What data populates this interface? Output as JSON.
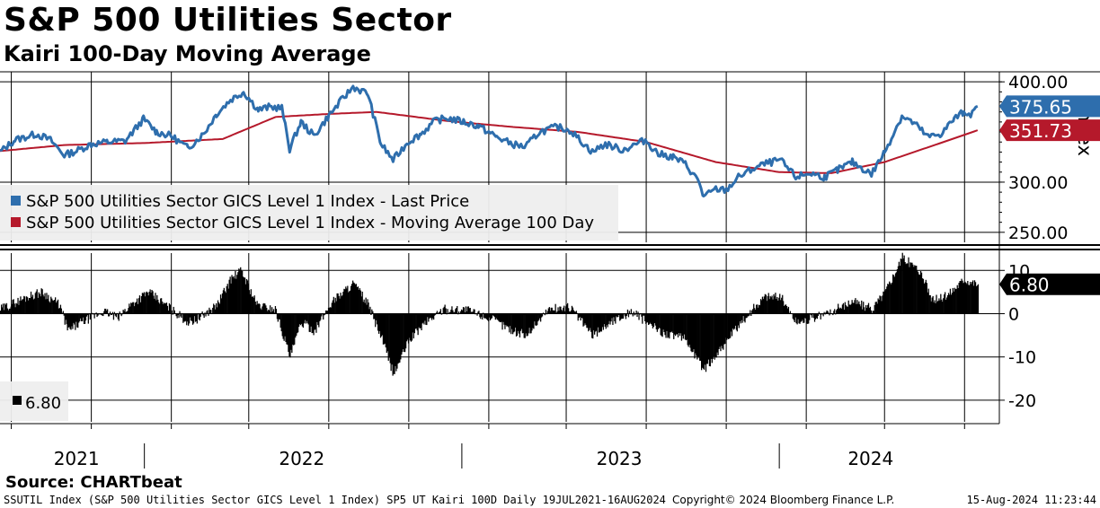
{
  "header": {
    "title": "S&P 500 Utilities Sector",
    "subtitle": "Kairi 100-Day Moving Average"
  },
  "footer": {
    "source": "Source: CHARTbeat",
    "left": "SSUTIL Index (S&P 500 Utilities Sector GICS Level 1 Index) SP5 UT Kairi 100D  Daily 19JUL2021-16AUG2024",
    "center": "Copyright© 2024 Bloomberg Finance L.P.",
    "right": "15-Aug-2024 11:23:44"
  },
  "colors": {
    "price": "#2e6ead",
    "ma": "#b5192b",
    "kairi": "#000000",
    "grid": "#000000"
  },
  "chart_data": [
    {
      "type": "line",
      "panel": "upper",
      "ylabel": "Index",
      "ylim": [
        240,
        410
      ],
      "y_ticks": [
        "400.00",
        "300.00",
        "250.00"
      ],
      "y_tick_values": [
        400,
        300,
        250
      ],
      "legend": {
        "placement": "lower-left",
        "entries": [
          "S&P 500 Utilities Sector GICS Level 1 Index - Last Price",
          "S&P 500 Utilities Sector GICS Level 1 Index - Moving Average 100 Day"
        ]
      },
      "last_labels": {
        "price": "375.65",
        "ma": "351.73"
      },
      "series": [
        {
          "name": "S&P 500 Utilities Sector GICS Level 1 Index - Last Price",
          "points": [
            [
              "2021-07-19",
              330
            ],
            [
              "2021-08-05",
              342
            ],
            [
              "2021-08-30",
              348
            ],
            [
              "2021-09-15",
              342
            ],
            [
              "2021-10-01",
              327
            ],
            [
              "2021-10-15",
              331
            ],
            [
              "2021-11-01",
              338
            ],
            [
              "2021-11-20",
              340
            ],
            [
              "2021-12-10",
              341
            ],
            [
              "2021-12-31",
              363
            ],
            [
              "2022-01-15",
              350
            ],
            [
              "2022-02-01",
              346
            ],
            [
              "2022-02-20",
              334
            ],
            [
              "2022-03-10",
              348
            ],
            [
              "2022-03-25",
              368
            ],
            [
              "2022-04-10",
              382
            ],
            [
              "2022-04-25",
              390
            ],
            [
              "2022-05-12",
              372
            ],
            [
              "2022-05-25",
              375
            ],
            [
              "2022-06-08",
              374
            ],
            [
              "2022-06-17",
              333
            ],
            [
              "2022-06-30",
              360
            ],
            [
              "2022-07-15",
              346
            ],
            [
              "2022-08-01",
              366
            ],
            [
              "2022-08-15",
              381
            ],
            [
              "2022-08-29",
              395
            ],
            [
              "2022-09-15",
              388
            ],
            [
              "2022-09-30",
              338
            ],
            [
              "2022-10-14",
              322
            ],
            [
              "2022-10-31",
              340
            ],
            [
              "2022-11-15",
              348
            ],
            [
              "2022-12-01",
              361
            ],
            [
              "2022-12-15",
              364
            ],
            [
              "2023-01-03",
              360
            ],
            [
              "2023-01-20",
              356
            ],
            [
              "2023-02-10",
              345
            ],
            [
              "2023-02-28",
              338
            ],
            [
              "2023-03-15",
              335
            ],
            [
              "2023-03-31",
              350
            ],
            [
              "2023-04-20",
              355
            ],
            [
              "2023-05-05",
              352
            ],
            [
              "2023-05-31",
              330
            ],
            [
              "2023-06-15",
              338
            ],
            [
              "2023-07-05",
              332
            ],
            [
              "2023-07-31",
              342
            ],
            [
              "2023-08-15",
              328
            ],
            [
              "2023-09-01",
              325
            ],
            [
              "2023-09-15",
              318
            ],
            [
              "2023-10-01",
              300
            ],
            [
              "2023-10-06",
              285
            ],
            [
              "2023-10-20",
              293
            ],
            [
              "2023-11-01",
              292
            ],
            [
              "2023-11-15",
              305
            ],
            [
              "2023-12-01",
              313
            ],
            [
              "2023-12-15",
              318
            ],
            [
              "2024-01-02",
              322
            ],
            [
              "2024-01-20",
              305
            ],
            [
              "2024-02-05",
              309
            ],
            [
              "2024-02-22",
              305
            ],
            [
              "2024-03-08",
              312
            ],
            [
              "2024-03-25",
              320
            ],
            [
              "2024-04-16",
              308
            ],
            [
              "2024-05-01",
              330
            ],
            [
              "2024-05-21",
              366
            ],
            [
              "2024-06-05",
              358
            ],
            [
              "2024-06-20",
              345
            ],
            [
              "2024-07-05",
              348
            ],
            [
              "2024-07-20",
              363
            ],
            [
              "2024-07-31",
              370
            ],
            [
              "2024-08-10",
              368
            ],
            [
              "2024-08-16",
              375.65
            ]
          ]
        },
        {
          "name": "S&P 500 Utilities Sector GICS Level 1 Index - Moving Average 100 Day",
          "points": [
            [
              "2021-07-19",
              331
            ],
            [
              "2021-10-01",
              337
            ],
            [
              "2022-01-01",
              339
            ],
            [
              "2022-04-01",
              343
            ],
            [
              "2022-06-01",
              365
            ],
            [
              "2022-08-01",
              368
            ],
            [
              "2022-09-25",
              370
            ],
            [
              "2022-12-15",
              361
            ],
            [
              "2023-03-01",
              355
            ],
            [
              "2023-05-15",
              350
            ],
            [
              "2023-08-01",
              340
            ],
            [
              "2023-10-20",
              320
            ],
            [
              "2024-01-01",
              310
            ],
            [
              "2024-03-01",
              309
            ],
            [
              "2024-05-01",
              320
            ],
            [
              "2024-07-01",
              338
            ],
            [
              "2024-08-16",
              351.73
            ]
          ]
        }
      ]
    },
    {
      "type": "bar",
      "panel": "lower",
      "ylim": [
        -25,
        14
      ],
      "y_ticks": [
        "10",
        "0",
        "-10",
        "-20"
      ],
      "y_tick_values": [
        10,
        0,
        -10,
        -20
      ],
      "legend": {
        "placement": "lower-left",
        "entries": [
          "6.80"
        ]
      },
      "last_label": "6.80",
      "series": [
        {
          "name": "6.80",
          "points": [
            [
              "2021-07-19",
              1
            ],
            [
              "2021-08-20",
              4
            ],
            [
              "2021-09-05",
              5
            ],
            [
              "2021-09-25",
              2
            ],
            [
              "2021-10-05",
              -4
            ],
            [
              "2021-10-20",
              -2
            ],
            [
              "2021-11-15",
              0.5
            ],
            [
              "2021-12-01",
              -1
            ],
            [
              "2021-12-15",
              2
            ],
            [
              "2022-01-05",
              5
            ],
            [
              "2022-01-25",
              2
            ],
            [
              "2022-02-20",
              -2
            ],
            [
              "2022-03-05",
              -1
            ],
            [
              "2022-03-25",
              2
            ],
            [
              "2022-04-10",
              8
            ],
            [
              "2022-04-22",
              10
            ],
            [
              "2022-05-10",
              2
            ],
            [
              "2022-05-31",
              1
            ],
            [
              "2022-06-17",
              -10
            ],
            [
              "2022-06-30",
              -2
            ],
            [
              "2022-07-15",
              -4
            ],
            [
              "2022-08-05",
              3
            ],
            [
              "2022-08-29",
              7
            ],
            [
              "2022-09-15",
              2
            ],
            [
              "2022-10-01",
              -6
            ],
            [
              "2022-10-14",
              -14
            ],
            [
              "2022-11-01",
              -6
            ],
            [
              "2022-11-20",
              -2
            ],
            [
              "2022-12-10",
              1
            ],
            [
              "2023-01-05",
              1
            ],
            [
              "2023-02-01",
              -1
            ],
            [
              "2023-03-01",
              -4
            ],
            [
              "2023-03-15",
              -5
            ],
            [
              "2023-04-10",
              1
            ],
            [
              "2023-05-05",
              1.5
            ],
            [
              "2023-05-31",
              -5
            ],
            [
              "2023-06-20",
              -2
            ],
            [
              "2023-07-15",
              0.5
            ],
            [
              "2023-08-15",
              -4
            ],
            [
              "2023-09-15",
              -6
            ],
            [
              "2023-10-06",
              -13
            ],
            [
              "2023-10-25",
              -8
            ],
            [
              "2023-11-10",
              -4
            ],
            [
              "2023-12-01",
              1
            ],
            [
              "2023-12-15",
              4
            ],
            [
              "2024-01-02",
              4
            ],
            [
              "2024-01-20",
              -2
            ],
            [
              "2024-02-10",
              -1
            ],
            [
              "2024-03-01",
              0.5
            ],
            [
              "2024-03-25",
              3
            ],
            [
              "2024-04-16",
              1
            ],
            [
              "2024-05-01",
              5
            ],
            [
              "2024-05-21",
              13
            ],
            [
              "2024-06-10",
              10
            ],
            [
              "2024-06-25",
              3
            ],
            [
              "2024-07-10",
              4
            ],
            [
              "2024-07-31",
              8
            ],
            [
              "2024-08-16",
              6.8
            ]
          ]
        }
      ]
    }
  ],
  "x_axis": {
    "labels": [
      {
        "text": "2021",
        "date": "2021-10-15"
      },
      {
        "text": "2022",
        "date": "2022-07-01"
      },
      {
        "text": "2023",
        "date": "2023-07-01"
      },
      {
        "text": "2024",
        "date": "2024-04-15"
      }
    ],
    "year_boundaries": [
      "2022-01-01",
      "2023-01-01",
      "2024-01-01"
    ],
    "grid_dates": [
      "2021-08-01",
      "2021-11-01",
      "2022-02-01",
      "2022-05-01",
      "2022-08-01",
      "2022-11-01",
      "2023-02-01",
      "2023-05-01",
      "2023-08-01",
      "2023-11-01",
      "2024-02-01",
      "2024-05-01",
      "2024-08-01"
    ],
    "range": [
      "2021-07-19",
      "2024-09-10"
    ]
  }
}
